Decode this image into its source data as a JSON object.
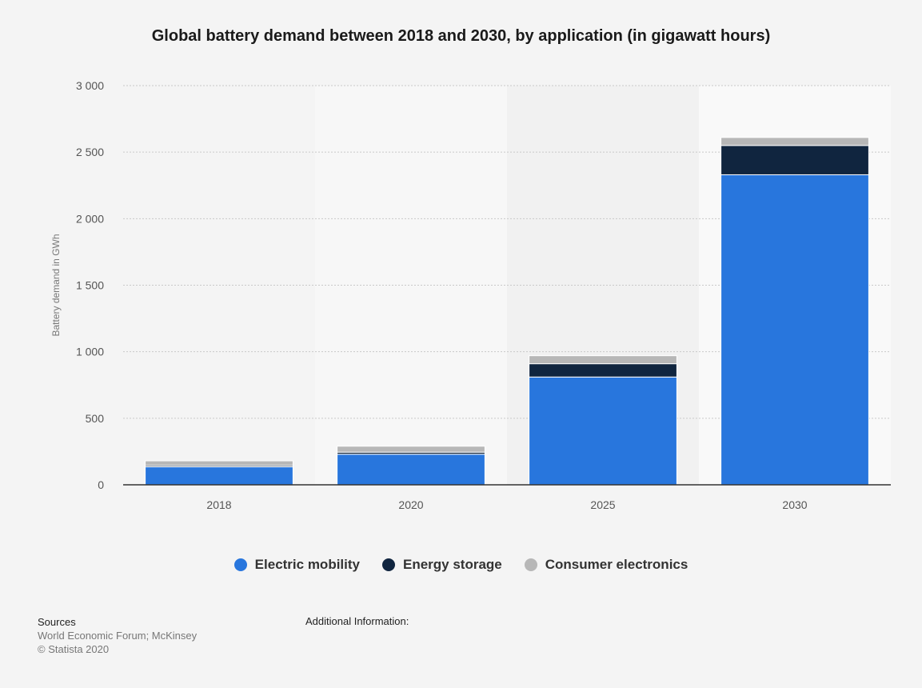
{
  "chart_data": {
    "type": "bar",
    "stacked": true,
    "title": "Global battery demand between 2018 and 2030, by application (in gigawatt hours)",
    "xlabel": "",
    "ylabel": "Battery demand in GWh",
    "ylim": [
      0,
      3000
    ],
    "yticks": [
      0,
      500,
      1000,
      1500,
      2000,
      2500,
      3000
    ],
    "ytick_labels": [
      "0",
      "500",
      "1 000",
      "1 500",
      "2 000",
      "2 500",
      "3 000"
    ],
    "categories": [
      "2018",
      "2020",
      "2025",
      "2030"
    ],
    "series": [
      {
        "name": "Electric mobility",
        "color": "#2876dd",
        "values": [
          135,
          230,
          810,
          2330
        ]
      },
      {
        "name": "Energy storage",
        "color": "#10253f",
        "values": [
          10,
          15,
          100,
          220
        ]
      },
      {
        "name": "Consumer electronics",
        "color": "#b7b7b7",
        "values": [
          35,
          45,
          60,
          60
        ]
      }
    ],
    "grid": true,
    "legend_position": "bottom-center"
  },
  "footer": {
    "sources_title": "Sources",
    "sources_line1": "World Economic Forum; McKinsey",
    "sources_line2": "© Statista 2020",
    "additional_info": "Additional Information:"
  }
}
